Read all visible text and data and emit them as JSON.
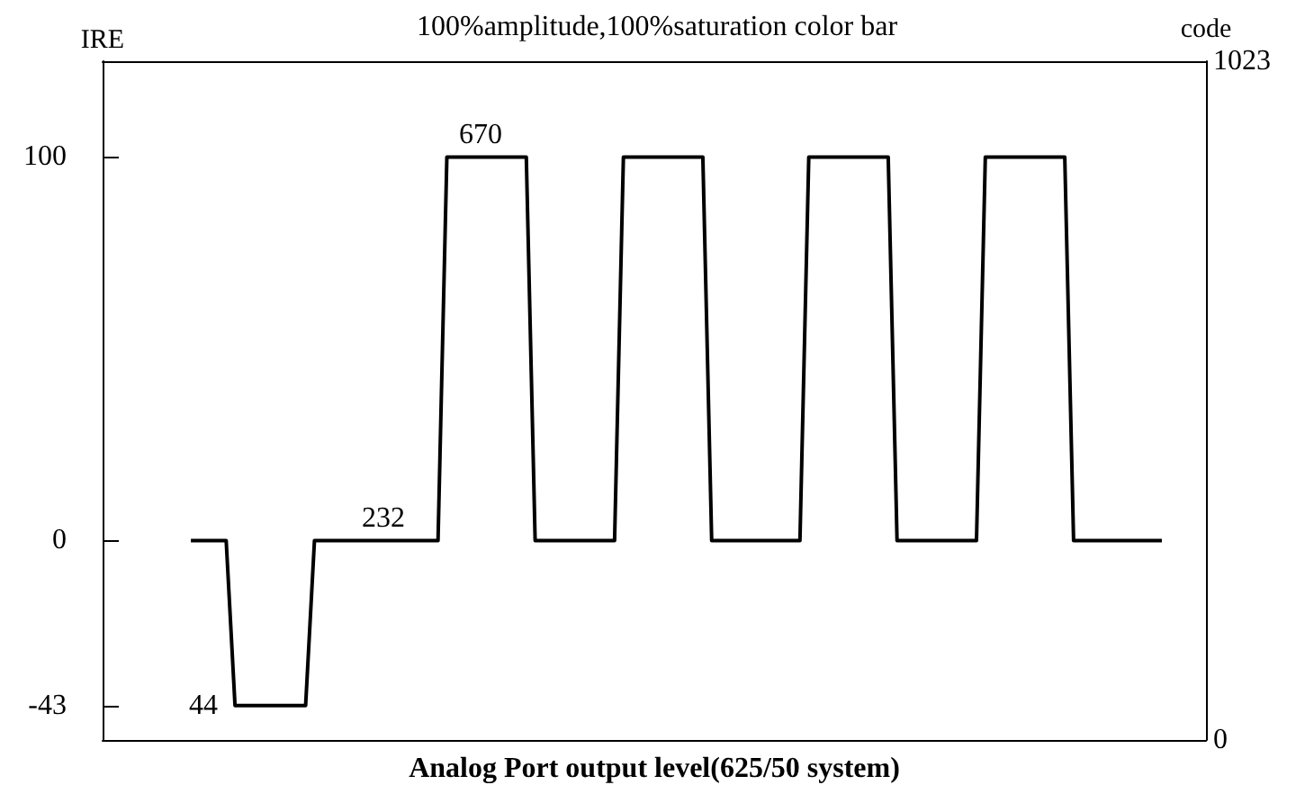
{
  "chart_data": {
    "type": "line",
    "title": "100%amplitude,100%saturation color bar",
    "xlabel": "Analog Port output level(625/50 system)",
    "ylabel": "IRE",
    "y2label": "code",
    "categories": [
      null,
      null,
      null,
      null,
      null,
      null,
      null,
      null,
      null,
      null,
      null,
      null,
      null,
      null,
      null,
      null,
      null,
      null,
      null,
      null,
      null,
      null,
      null,
      null,
      null,
      null,
      null,
      null,
      null,
      null,
      null,
      null,
      null,
      null,
      null,
      null,
      null,
      null,
      null,
      null,
      null,
      null,
      null,
      null,
      null,
      null,
      null,
      null,
      null,
      null,
      null,
      null,
      null,
      null,
      null,
      null,
      null,
      null,
      null,
      null,
      null,
      null,
      null,
      null,
      null,
      null,
      null,
      null,
      null,
      null,
      null,
      null,
      null,
      null,
      null,
      null,
      null,
      null,
      null,
      null,
      null,
      null,
      null,
      null,
      null,
      null,
      null,
      null,
      null,
      null,
      null,
      null,
      null,
      null,
      null,
      null,
      null,
      null,
      null,
      null,
      null,
      null,
      null,
      null,
      null,
      null,
      null,
      null,
      null,
      null,
      null,
      null,
      null,
      null,
      null,
      null,
      null,
      null,
      null,
      null,
      null,
      null,
      null,
      null,
      null,
      null
    ],
    "series": [
      {
        "color": "#000000",
        "values": [
          null,
          null,
          null,
          null,
          null,
          null,
          null,
          null,
          null,
          null,
          0,
          0,
          0,
          0,
          0,
          -43,
          -43,
          -43,
          -43,
          -43,
          -43,
          -43,
          -43,
          -43,
          0,
          0,
          0,
          0,
          0,
          0,
          0,
          0,
          0,
          0,
          0,
          0,
          0,
          0,
          0,
          100,
          100,
          100,
          100,
          100,
          100,
          100,
          100,
          100,
          100,
          0,
          0,
          0,
          0,
          0,
          0,
          0,
          0,
          0,
          0,
          100,
          100,
          100,
          100,
          100,
          100,
          100,
          100,
          100,
          100,
          0,
          0,
          0,
          0,
          0,
          0,
          0,
          0,
          0,
          0,
          0,
          100,
          100,
          100,
          100,
          100,
          100,
          100,
          100,
          100,
          100,
          0,
          0,
          0,
          0,
          0,
          0,
          0,
          0,
          0,
          0,
          100,
          100,
          100,
          100,
          100,
          100,
          100,
          100,
          100,
          100,
          0,
          0,
          0,
          0,
          0,
          0,
          0,
          0,
          0,
          0,
          0,
          null,
          null,
          null,
          null,
          null
        ]
      }
    ],
    "ylim": [
      -52,
      125
    ],
    "yticks": [
      -43,
      0,
      100
    ],
    "y2lim": [
      0,
      1023
    ],
    "y2ticks": [
      0,
      1023
    ],
    "tick_labels": "y",
    "grid": false,
    "marker": "none",
    "line_style": "solid",
    "annotations": [
      "44",
      "232",
      "670"
    ]
  }
}
